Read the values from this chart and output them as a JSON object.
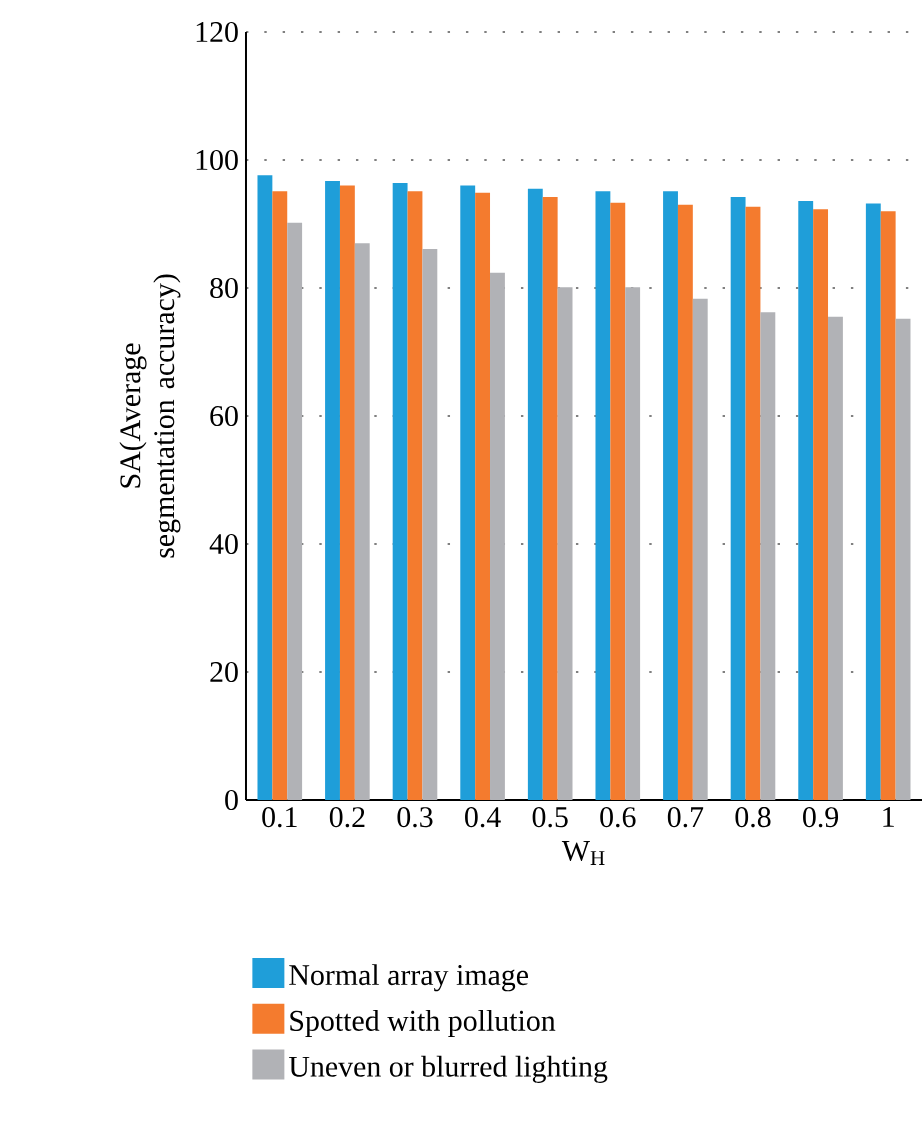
{
  "chart_data": {
    "type": "bar",
    "xlabel": "W$_{H}$",
    "ylabel": "SA(Average segmentation accuracy)",
    "categories": [
      "0.1",
      "0.2",
      "0.3",
      "0.4",
      "0.5",
      "0.6",
      "0.7",
      "0.8",
      "0.9",
      "1"
    ],
    "series": [
      {
        "name": "Normal array image",
        "color": "#1f9ed9",
        "values": [
          97.6,
          96.7,
          96.4,
          96.0,
          95.5,
          95.1,
          95.1,
          94.2,
          93.6,
          93.2
        ]
      },
      {
        "name": "Spotted with pollution",
        "color": "#f47b2e",
        "values": [
          95.1,
          96.0,
          95.1,
          94.9,
          94.2,
          93.3,
          93.0,
          92.7,
          92.3,
          92.0
        ]
      },
      {
        "name": "Uneven or blurred lighting",
        "color": "#b1b2b6",
        "values": [
          90.2,
          87.0,
          86.1,
          82.4,
          80.1,
          80.1,
          78.3,
          76.2,
          75.5,
          75.2
        ]
      }
    ],
    "ylim": [
      0,
      120
    ],
    "yticks": [
      0,
      20,
      40,
      60,
      80,
      100,
      120
    ],
    "grid": "y",
    "legend": "bottom"
  }
}
